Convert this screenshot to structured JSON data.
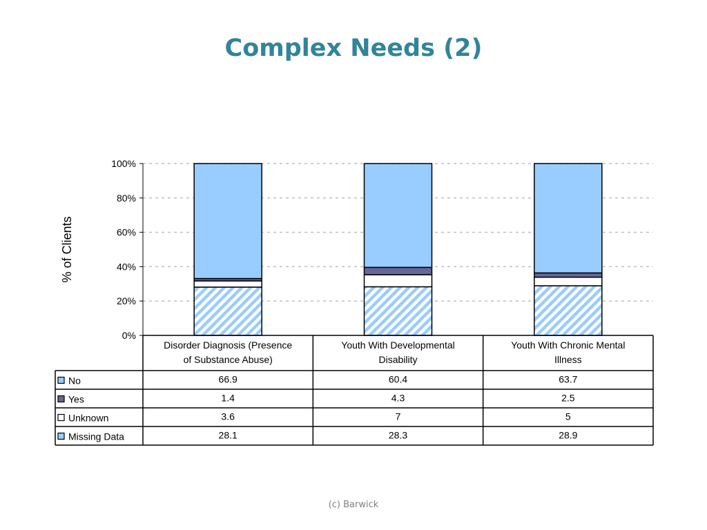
{
  "slide": {
    "title": "Complex Needs (2)",
    "footer": "(c) Barwick"
  },
  "colors": {
    "title": "#31849B",
    "no": "#99CCFF",
    "yes": "#666699",
    "unknown": "#FFFFFF",
    "missing_data": "#99CCFF",
    "missing_data_pattern": "diagonal-stripes",
    "gridline": "#BFBFBF"
  },
  "chart_data": {
    "type": "bar",
    "stacked": true,
    "percent_stacked": true,
    "title": "",
    "xlabel": "",
    "ylabel": "% of Clients",
    "ylim": [
      0,
      100
    ],
    "yticks": [
      "0%",
      "20%",
      "40%",
      "60%",
      "80%",
      "100%"
    ],
    "grid": "horizontal-dashed",
    "legend": "data-table",
    "categories": [
      "Disorder Diagnosis (Presence of Substance Abuse)",
      "Youth With Developmental Disability",
      "Youth With Chronic Mental Illness"
    ],
    "category_lines": [
      [
        "Disorder Diagnosis (Presence",
        "of Substance Abuse)"
      ],
      [
        "Youth With Developmental",
        "Disability"
      ],
      [
        "Youth With Chronic Mental",
        "Illness"
      ]
    ],
    "stack_order": [
      "Missing Data",
      "Unknown",
      "Yes",
      "No"
    ],
    "series": [
      {
        "name": "No",
        "values": [
          66.9,
          60.4,
          63.7
        ],
        "labels": [
          "66.9",
          "60.4",
          "63.7"
        ]
      },
      {
        "name": "Yes",
        "values": [
          1.4,
          4.3,
          2.5
        ],
        "labels": [
          "1.4",
          "4.3",
          "2.5"
        ]
      },
      {
        "name": "Unknown",
        "values": [
          3.6,
          7,
          5
        ],
        "labels": [
          "3.6",
          "7",
          "5"
        ]
      },
      {
        "name": "Missing Data",
        "values": [
          28.1,
          28.3,
          28.9
        ],
        "labels": [
          "28.1",
          "28.3",
          "28.9"
        ]
      }
    ]
  }
}
